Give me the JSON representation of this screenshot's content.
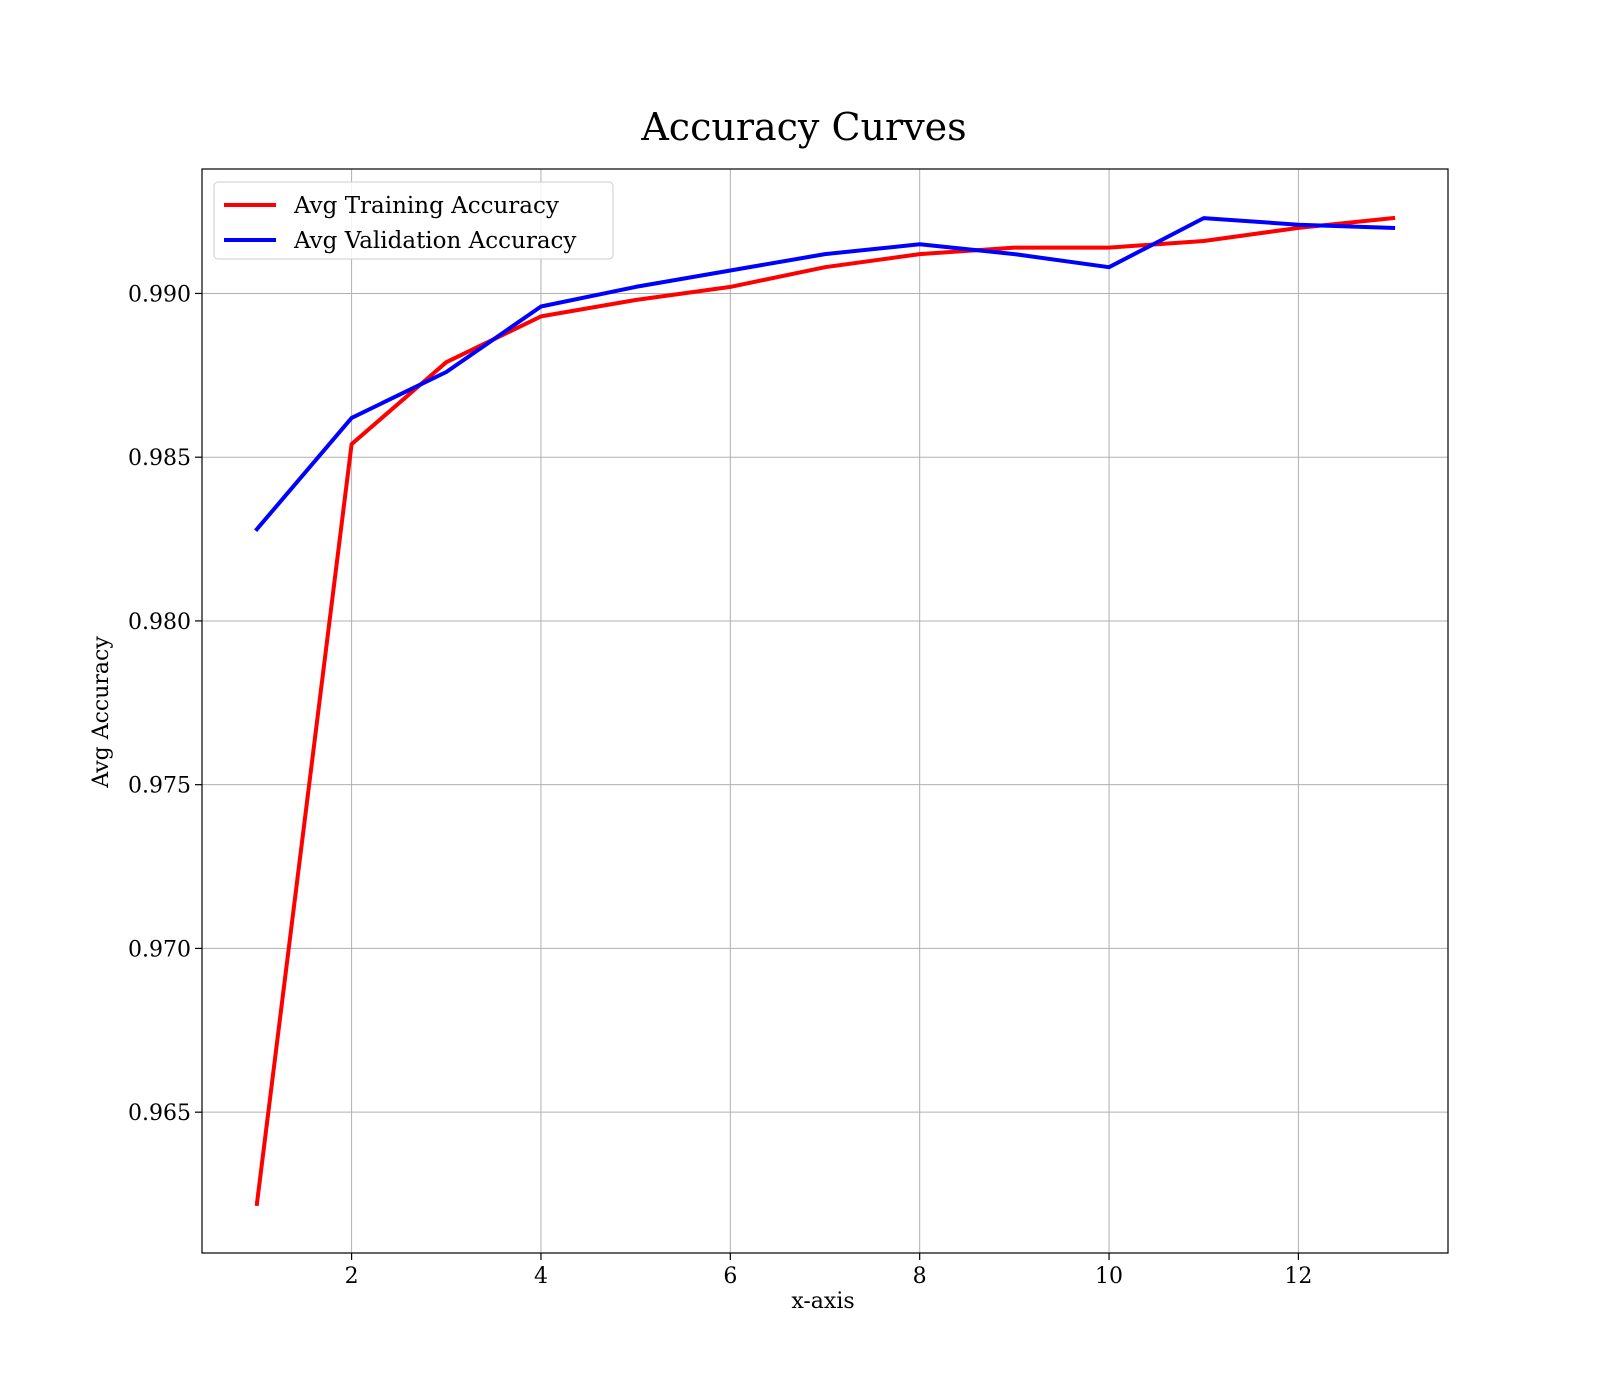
{
  "chart_data": {
    "type": "line",
    "title": "Accuracy Curves",
    "xlabel": "x-axis",
    "ylabel": "Avg Accuracy",
    "xlim": [
      0.42,
      13.58
    ],
    "ylim": [
      0.9607,
      0.9938
    ],
    "x_ticks": [
      2,
      4,
      6,
      8,
      10,
      12
    ],
    "y_ticks": [
      0.965,
      0.97,
      0.975,
      0.98,
      0.985,
      0.99
    ],
    "y_tick_labels": [
      "0.965",
      "0.970",
      "0.975",
      "0.980",
      "0.985",
      "0.990"
    ],
    "grid": true,
    "legend_position": "top-left",
    "x": [
      1,
      2,
      3,
      4,
      5,
      6,
      7,
      8,
      9,
      10,
      11,
      12,
      13
    ],
    "series": [
      {
        "name": "Avg Training Accuracy",
        "color": "#ff0000",
        "values": [
          0.9622,
          0.9854,
          0.9879,
          0.9893,
          0.9898,
          0.9902,
          0.9908,
          0.9912,
          0.9914,
          0.9914,
          0.9916,
          0.992,
          0.9923
        ]
      },
      {
        "name": "Avg Validation Accuracy",
        "color": "#0000ff",
        "values": [
          0.9828,
          0.9862,
          0.9876,
          0.9896,
          0.9902,
          0.9907,
          0.9912,
          0.9915,
          0.9912,
          0.9908,
          0.9923,
          0.9921,
          0.992
        ]
      }
    ]
  }
}
